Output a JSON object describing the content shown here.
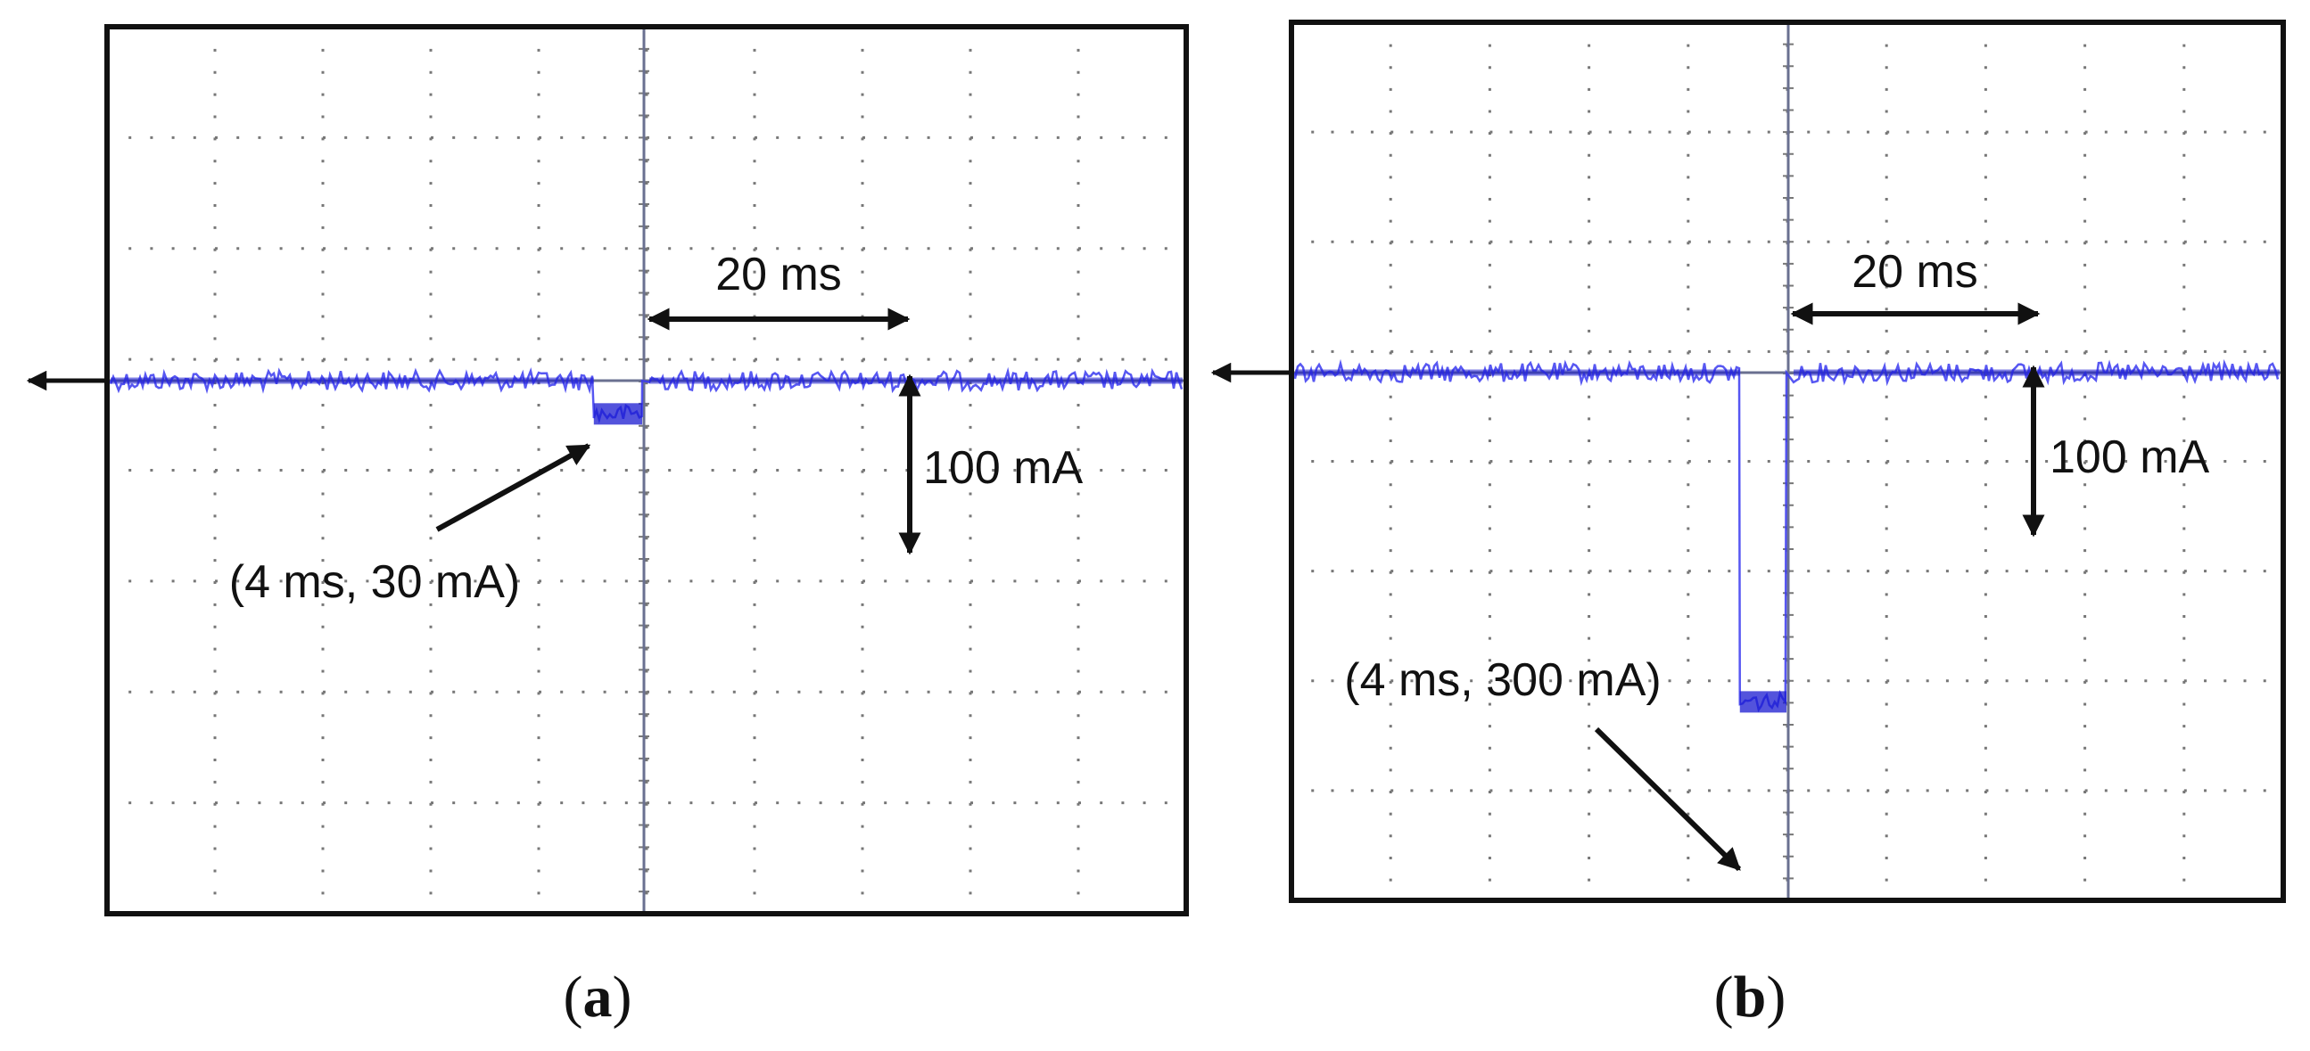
{
  "colors": {
    "trace": "#3a3af0",
    "trace_dark": "#1a1ad0",
    "frame": "#111111",
    "grid": "#777777",
    "center_line": "#6a7090"
  },
  "chart_data": [
    {
      "type": "line",
      "panel_label_letter": "a",
      "grid": true,
      "divisions": {
        "x": 10,
        "y": 8
      },
      "scale": {
        "time_per_div": "20 ms",
        "current_per_div": "100 mA"
      },
      "pulse": {
        "duration_ms": 4,
        "amplitude_mA": 30
      },
      "annotations": {
        "time_scale": "20 ms",
        "current_scale": "100 mA",
        "pulse_label": "(4 ms, 30 mA)"
      }
    },
    {
      "type": "line",
      "panel_label_letter": "b",
      "grid": true,
      "divisions": {
        "x": 10,
        "y": 8
      },
      "scale": {
        "time_per_div": "20 ms",
        "current_per_div": "100 mA"
      },
      "pulse": {
        "duration_ms": 4,
        "amplitude_mA": 300
      },
      "annotations": {
        "time_scale": "20 ms",
        "current_scale": "100 mA",
        "pulse_label": "(4 ms, 300 mA)"
      }
    }
  ]
}
